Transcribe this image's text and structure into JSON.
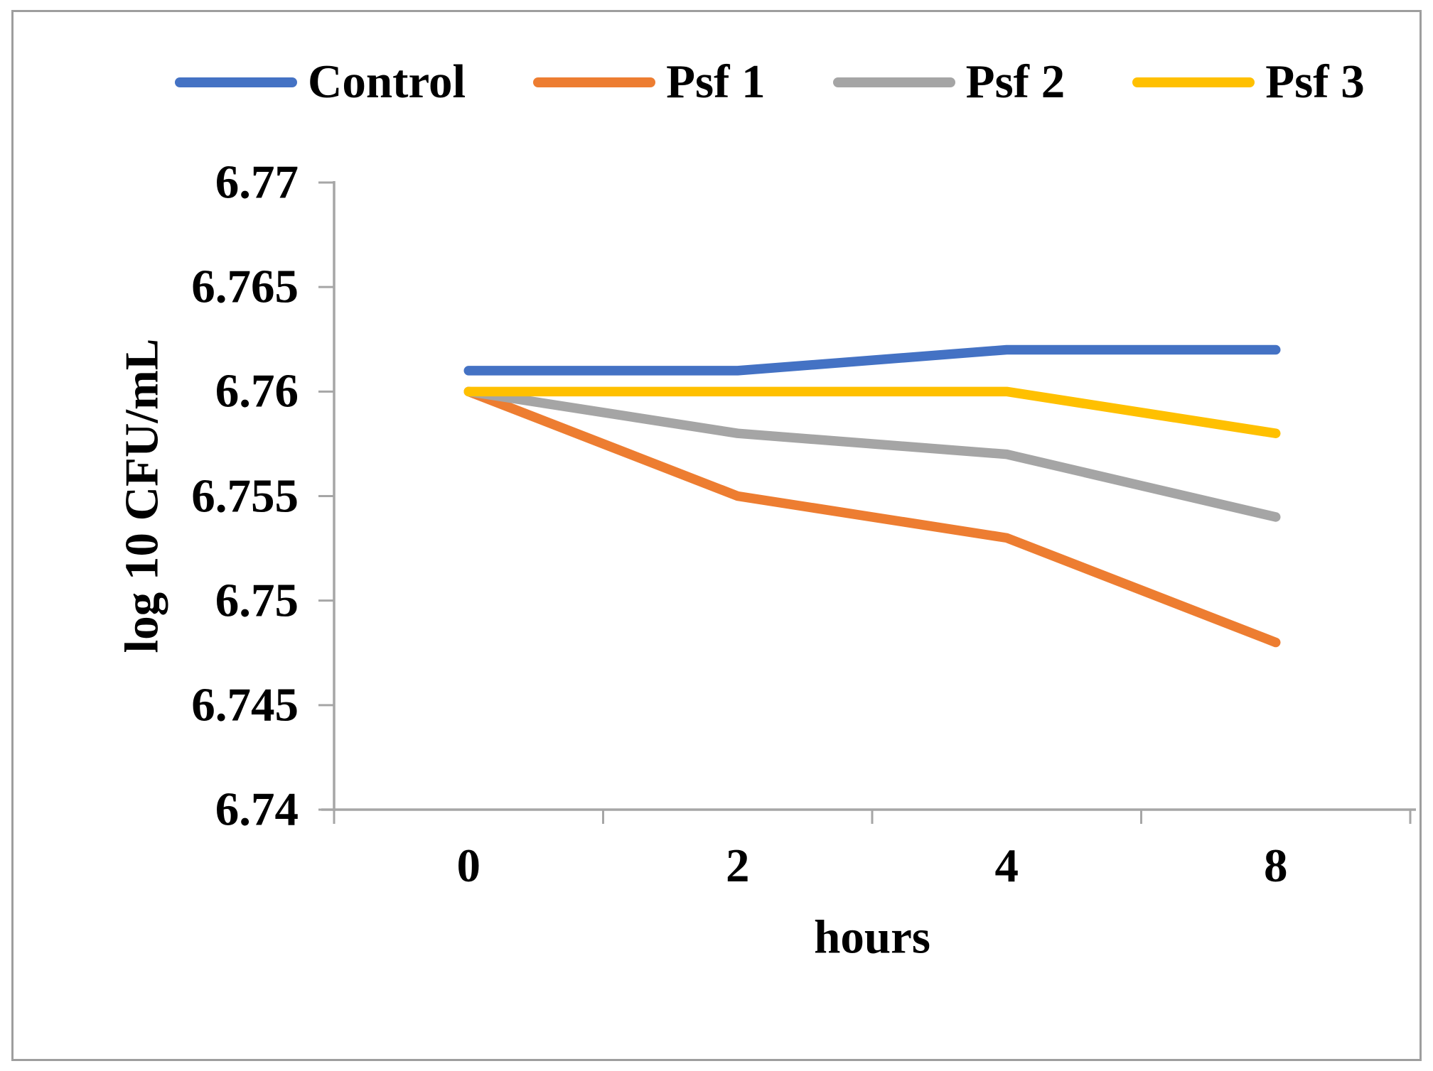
{
  "chart_data": {
    "type": "line",
    "title": "",
    "xlabel": "hours",
    "ylabel": "log 10 CFU/mL",
    "categories": [
      "0",
      "2",
      "4",
      "8"
    ],
    "series": [
      {
        "name": "Control",
        "color": "#4472C4",
        "values": [
          6.761,
          6.761,
          6.762,
          6.762
        ]
      },
      {
        "name": "Psf 1",
        "color": "#ED7D31",
        "values": [
          6.76,
          6.755,
          6.753,
          6.748
        ]
      },
      {
        "name": "Psf 2",
        "color": "#A5A5A5",
        "values": [
          6.76,
          6.758,
          6.757,
          6.754
        ]
      },
      {
        "name": "Psf 3",
        "color": "#FFC000",
        "values": [
          6.76,
          6.76,
          6.76,
          6.758
        ]
      }
    ],
    "ylim": [
      6.74,
      6.77
    ],
    "ytick_labels": [
      "6.77",
      "6.765",
      "6.76",
      "6.755",
      "6.75",
      "6.745",
      "6.74"
    ],
    "legend_position": "top",
    "grid": false,
    "axis_color": "#A6A6A6",
    "text_color": "#000000"
  }
}
